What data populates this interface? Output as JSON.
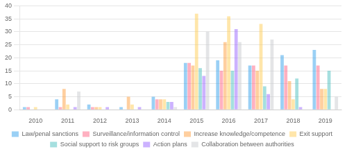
{
  "chart_data": {
    "type": "bar",
    "categories": [
      "2010",
      "2011",
      "2012",
      "2013",
      "2014",
      "2015",
      "2016",
      "2017",
      "2018",
      "2019"
    ],
    "series": [
      {
        "name": "Law/penal sanctions",
        "values": [
          1,
          4,
          2,
          1,
          5,
          18,
          19,
          17,
          21,
          23
        ]
      },
      {
        "name": "Surveillance/information control",
        "values": [
          1,
          1,
          1,
          0,
          4,
          18,
          15,
          17,
          17,
          17
        ]
      },
      {
        "name": "Increase knowledge/competence",
        "values": [
          0,
          8,
          1,
          5,
          4,
          17,
          26,
          15,
          11,
          8
        ]
      },
      {
        "name": "Exit support",
        "values": [
          1,
          2,
          1,
          2,
          4,
          37,
          36,
          33,
          4,
          8
        ]
      },
      {
        "name": "Social support to risk groups",
        "values": [
          0,
          0,
          0,
          0,
          3,
          16,
          15,
          9,
          12,
          15
        ]
      },
      {
        "name": "Action plans",
        "values": [
          0,
          1,
          1,
          1,
          3,
          13,
          31,
          6,
          1,
          0
        ]
      },
      {
        "name": "Collaboration between authorities",
        "values": [
          0,
          7,
          0,
          0,
          1,
          30,
          26,
          27,
          0,
          5
        ]
      }
    ],
    "ylim": [
      0,
      40
    ],
    "yticks": [
      0,
      5,
      10,
      15,
      20,
      25,
      30,
      35,
      40
    ],
    "grid": true,
    "legend": "bottom"
  }
}
